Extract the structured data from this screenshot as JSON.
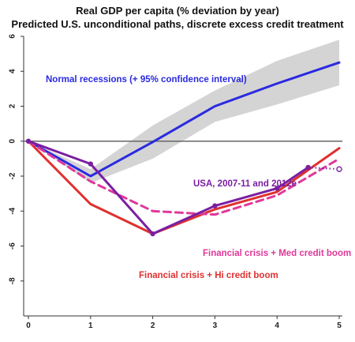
{
  "chart_data": {
    "type": "line",
    "title": "Real GDP per capita (% deviation by year)",
    "subtitle": "Predicted U.S. unconditional paths, discrete excess credit treatment",
    "xlabel": "",
    "ylabel": "",
    "xlim": [
      0,
      5
    ],
    "ylim": [
      -10,
      6
    ],
    "x_ticks": [
      "0",
      "1",
      "2",
      "3",
      "4",
      "5"
    ],
    "y_ticks": [
      "6",
      "4",
      "2",
      "0",
      "-2",
      "-4",
      "-6",
      "-8"
    ],
    "reference_line_y": 0,
    "grid": false,
    "legend": "none",
    "series": [
      {
        "id": "normal",
        "name": "Normal recessions (+ 95% confidence interval)",
        "color": "#2a2ae0",
        "style": "solid",
        "x": [
          0,
          1,
          2,
          3,
          4,
          5
        ],
        "values": [
          0,
          -2.0,
          -0.05,
          2.0,
          3.3,
          4.5
        ],
        "ci_upper": [
          0,
          -1.6,
          0.9,
          2.9,
          4.6,
          5.8
        ],
        "ci_lower": [
          0,
          -2.4,
          -1.0,
          1.1,
          2.1,
          3.2
        ],
        "ci_color": "#cccccc"
      },
      {
        "id": "hi",
        "name": "Financial crisis + Hi credit boom",
        "color": "#e03030",
        "style": "solid",
        "x": [
          0,
          1,
          2,
          3,
          4,
          5
        ],
        "values": [
          0,
          -3.6,
          -5.3,
          -3.9,
          -2.9,
          -0.4
        ]
      },
      {
        "id": "med",
        "name": "Financial crisis + Med credit boom",
        "color": "#e0389a",
        "style": "dashed",
        "x": [
          0,
          1,
          2,
          3,
          4,
          5
        ],
        "values": [
          0,
          -2.3,
          -4.0,
          -4.2,
          -3.1,
          -1.0
        ]
      },
      {
        "id": "usa",
        "name": "USA, 2007-11 and 2012e",
        "color": "#7a1fa2",
        "style": "solid",
        "markers": true,
        "x": [
          0,
          1,
          2,
          3,
          4,
          4.5
        ],
        "values": [
          0,
          -1.3,
          -5.3,
          -3.7,
          -2.7,
          -1.5
        ],
        "projection": {
          "x": [
            4.5,
            5
          ],
          "values": [
            -1.5,
            -1.6
          ],
          "style": "dotted"
        }
      }
    ],
    "annotations": [
      {
        "text": "Normal recessions (+ 95% confidence interval)",
        "color": "#2a2ae0"
      },
      {
        "text": "USA, 2007-11 and 2012e",
        "color": "#7a1fa2"
      },
      {
        "text": "Financial crisis + Med credit boom",
        "color": "#e0389a"
      },
      {
        "text": "Financial crisis + Hi credit boom",
        "color": "#e03030"
      }
    ]
  }
}
